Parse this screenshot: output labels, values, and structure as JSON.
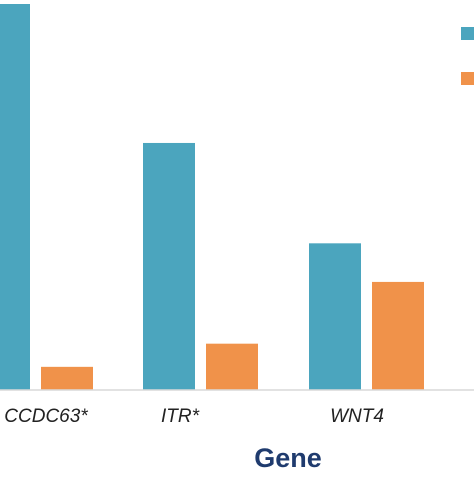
{
  "chart_data": {
    "type": "bar",
    "categories": [
      "CCDC63*",
      "ITR*",
      "WNT4"
    ],
    "series": [
      {
        "values": [
          100,
          64,
          38
        ],
        "color": "#4ba5be"
      },
      {
        "values": [
          6,
          12,
          28
        ],
        "color": "#f0924a"
      }
    ],
    "xlabel": "Gene",
    "ylabel": "",
    "ylim": [
      0,
      100
    ],
    "grid": false,
    "legend": "top-right"
  }
}
